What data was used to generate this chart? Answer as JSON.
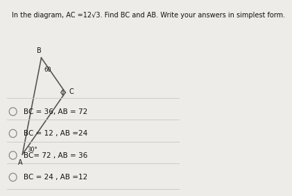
{
  "title": "In the diagram, AC =12√3. Find BC and AB. Write your answers in simplest form.",
  "options": [
    "BC = 36, AB = 72",
    "BC = 12 , AB =24",
    "BC= 72 , AB = 36",
    "BC = 24 , AB =12"
  ],
  "bg_color": "#eeece8",
  "line_color": "#555555",
  "text_color": "#111111",
  "option_color": "#111111",
  "divider_color": "#cccccc"
}
